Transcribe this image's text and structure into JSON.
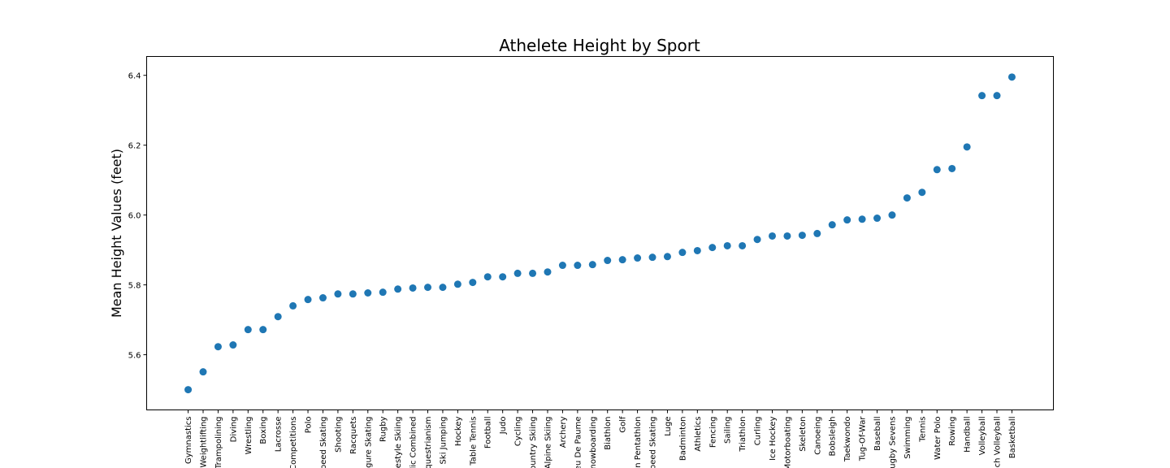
{
  "chart_data": {
    "type": "scatter",
    "title": "Athelete Height by Sport",
    "y_label": "Mean Height Values (feet)",
    "categories": [
      "Gymnastics",
      "Weightlifting",
      "Trampolining",
      "Diving",
      "Wrestling",
      "Boxing",
      "Lacrosse",
      "Competitions",
      "Polo",
      "peed Skating",
      "Shooting",
      "Racquets",
      "gure Skating",
      "Rugby",
      "estyle Skiing",
      "lic Combined",
      "questrianism",
      "Ski Jumping",
      "Hockey",
      "Table Tennis",
      "Football",
      "Judo",
      "Cycling",
      "ountry Skiing",
      "Alpine Skiing",
      "Archery",
      "eu De Paume",
      "nowboarding",
      "Biathlon",
      "Golf",
      "n Pentathlon",
      "peed Skating",
      "Luge",
      "Badminton",
      "Athletics",
      "Fencing",
      "Sailing",
      "Triathlon",
      "Curling",
      "Ice Hockey",
      "Motorboating",
      "Skeleton",
      "Canoeing",
      "Bobsleigh",
      "Taekwondo",
      "Tug-Of-War",
      "Baseball",
      "ugby Sevens",
      "Swimming",
      "Tennis",
      "Water Polo",
      "Rowing",
      "Handball",
      "Volleyball",
      "ch Volleyball",
      "Basketball"
    ],
    "values": [
      5.5,
      5.551,
      5.623,
      5.628,
      5.672,
      5.672,
      5.709,
      5.74,
      5.758,
      5.763,
      5.774,
      5.774,
      5.777,
      5.779,
      5.788,
      5.791,
      5.793,
      5.793,
      5.802,
      5.807,
      5.823,
      5.823,
      5.833,
      5.833,
      5.837,
      5.856,
      5.856,
      5.858,
      5.87,
      5.872,
      5.877,
      5.879,
      5.881,
      5.893,
      5.898,
      5.907,
      5.912,
      5.912,
      5.93,
      5.94,
      5.94,
      5.942,
      5.947,
      5.972,
      5.986,
      5.988,
      5.991,
      6.0,
      6.049,
      6.065,
      6.13,
      6.133,
      6.195,
      6.342,
      6.342,
      6.395
    ],
    "color": "#1f77b4",
    "ylim": [
      5.442,
      6.454
    ],
    "yticks": [
      5.6,
      5.8,
      {
        "value": 6,
        "label": "6.0"
      },
      6.2,
      6.4
    ]
  }
}
